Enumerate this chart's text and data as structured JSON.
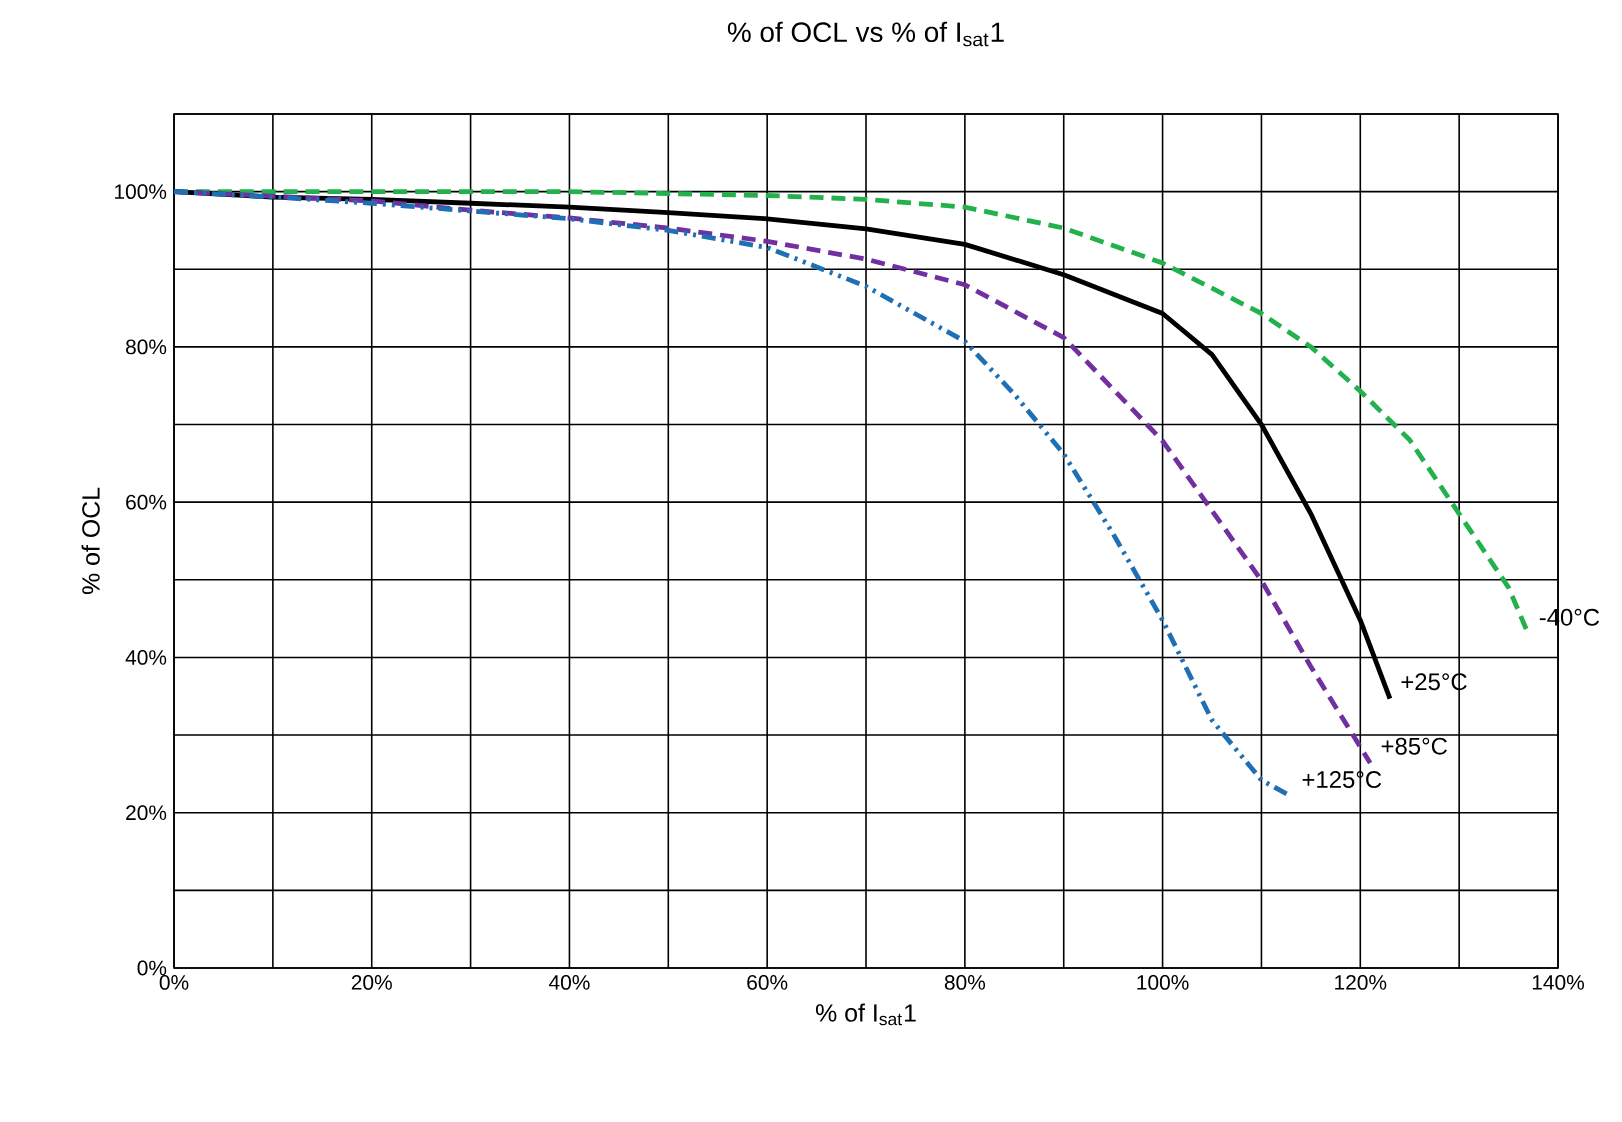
{
  "chart_data": {
    "type": "line",
    "title": "% of OCL vs % of I$_{sat}$1",
    "xlabel": "% of I$_{sat}$1",
    "ylabel": "% of OCL",
    "xlim": [
      0,
      140
    ],
    "ylim": [
      0,
      110
    ],
    "xticks": [
      {
        "value": 0,
        "label": "0%"
      },
      {
        "value": 10,
        "label": null
      },
      {
        "value": 20,
        "label": "20%"
      },
      {
        "value": 30,
        "label": null
      },
      {
        "value": 40,
        "label": "40%"
      },
      {
        "value": 50,
        "label": null
      },
      {
        "value": 60,
        "label": "60%"
      },
      {
        "value": 70,
        "label": null
      },
      {
        "value": 80,
        "label": "80%"
      },
      {
        "value": 90,
        "label": null
      },
      {
        "value": 100,
        "label": "100%"
      },
      {
        "value": 110,
        "label": null
      },
      {
        "value": 120,
        "label": "120%"
      },
      {
        "value": 130,
        "label": null
      },
      {
        "value": 140,
        "label": "140%"
      }
    ],
    "yticks": [
      {
        "value": 0,
        "label": "0%"
      },
      {
        "value": 10,
        "label": null
      },
      {
        "value": 20,
        "label": "20%"
      },
      {
        "value": 30,
        "label": null
      },
      {
        "value": 40,
        "label": "40%"
      },
      {
        "value": 50,
        "label": null
      },
      {
        "value": 60,
        "label": "60%"
      },
      {
        "value": 70,
        "label": null
      },
      {
        "value": 80,
        "label": "80%"
      },
      {
        "value": 90,
        "label": null
      },
      {
        "value": 100,
        "label": "100%"
      },
      {
        "value": 110,
        "label": null
      }
    ],
    "grid": true,
    "legend": false,
    "marker": "none",
    "series": [
      {
        "name": "-40°C",
        "color": "#22b14c",
        "line_style": "dashed",
        "x": [
          0,
          20,
          40,
          60,
          70,
          80,
          90,
          100,
          110,
          115,
          120,
          125,
          130,
          135,
          137
        ],
        "values": [
          100,
          100,
          100,
          99.5,
          99,
          98,
          95.3,
          90.8,
          84.3,
          80,
          74.3,
          68,
          58.5,
          49,
          43
        ]
      },
      {
        "name": "+25°C",
        "color": "#000000",
        "line_style": "solid",
        "x": [
          0,
          10,
          20,
          30,
          40,
          50,
          60,
          70,
          80,
          90,
          100,
          105,
          110,
          115,
          120,
          123
        ],
        "values": [
          100,
          99.3,
          99,
          98.5,
          98,
          97.3,
          96.5,
          95.2,
          93.2,
          89.3,
          84.3,
          79,
          70,
          58.5,
          44.8,
          34.7
        ]
      },
      {
        "name": "+85°C",
        "color": "#7030a0",
        "line_style": "dashed",
        "x": [
          0,
          10,
          20,
          30,
          40,
          50,
          60,
          70,
          80,
          90,
          100,
          110,
          115,
          121
        ],
        "values": [
          100,
          99.4,
          98.8,
          97.6,
          96.6,
          95.3,
          93.6,
          91.3,
          88,
          81.2,
          67.9,
          49.9,
          38.8,
          26.4
        ]
      },
      {
        "name": "+125°C",
        "color": "#1f6fb5",
        "line_style": "dashdotdotted",
        "x": [
          0,
          10,
          20,
          30,
          40,
          50,
          60,
          70,
          80,
          85,
          90,
          95,
          100,
          105,
          110,
          113
        ],
        "values": [
          100,
          99.3,
          98.5,
          97.5,
          96.5,
          95,
          92.8,
          87.8,
          80.7,
          73.9,
          66.2,
          55.9,
          44.8,
          31.9,
          24.2,
          22.1
        ]
      }
    ]
  }
}
